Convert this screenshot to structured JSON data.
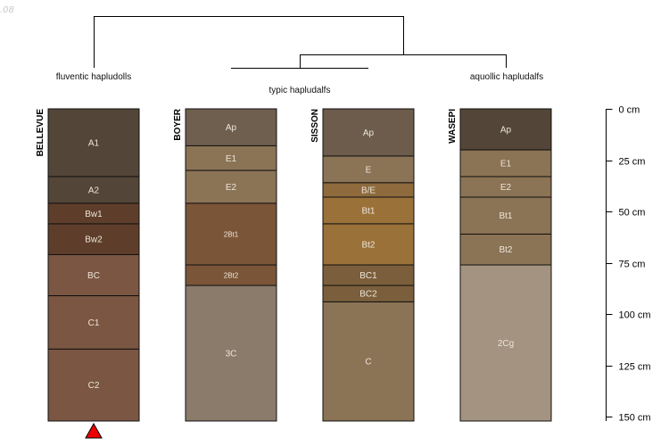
{
  "corner_text": ".08",
  "dendrogram": {
    "labels": [
      "fluventic hapludolls",
      "typic hapludalfs",
      "aquollic hapludalfs"
    ]
  },
  "profiles": [
    {
      "id": "BELLEVUE",
      "marker": "up-triangle",
      "marker_color": "#ee0000",
      "horizons": [
        {
          "name": "A1",
          "top": 0,
          "bottom": 33,
          "color": "#534538"
        },
        {
          "name": "A2",
          "top": 33,
          "bottom": 46,
          "color": "#534538"
        },
        {
          "name": "Bw1",
          "top": 46,
          "bottom": 56,
          "color": "#5e3e2b"
        },
        {
          "name": "Bw2",
          "top": 56,
          "bottom": 71,
          "color": "#5e3e2b"
        },
        {
          "name": "BC",
          "top": 71,
          "bottom": 91,
          "color": "#7b5642"
        },
        {
          "name": "C1",
          "top": 91,
          "bottom": 117,
          "color": "#7b5642"
        },
        {
          "name": "C2",
          "top": 117,
          "bottom": 152,
          "color": "#7b5642"
        }
      ]
    },
    {
      "id": "BOYER",
      "marker": "",
      "marker_color": "",
      "horizons": [
        {
          "name": "Ap",
          "top": 0,
          "bottom": 18,
          "color": "#6f5f4e"
        },
        {
          "name": "E1",
          "top": 18,
          "bottom": 30,
          "color": "#8b7355"
        },
        {
          "name": "E2",
          "top": 30,
          "bottom": 46,
          "color": "#8b7355"
        },
        {
          "name": "2Bt1",
          "top": 46,
          "bottom": 76,
          "color": "#7b5538"
        },
        {
          "name": "2Bt2",
          "top": 76,
          "bottom": 86,
          "color": "#7b5538"
        },
        {
          "name": "3C",
          "top": 86,
          "bottom": 152,
          "color": "#8a7b6a"
        }
      ]
    },
    {
      "id": "SISSON",
      "marker": "",
      "marker_color": "",
      "horizons": [
        {
          "name": "Ap",
          "top": 0,
          "bottom": 23,
          "color": "#6d5c4b"
        },
        {
          "name": "E",
          "top": 23,
          "bottom": 36,
          "color": "#8b7355"
        },
        {
          "name": "B/E",
          "top": 36,
          "bottom": 43,
          "color": "#8e6a3d"
        },
        {
          "name": "Bt1",
          "top": 43,
          "bottom": 56,
          "color": "#9a7138"
        },
        {
          "name": "Bt2",
          "top": 56,
          "bottom": 76,
          "color": "#9a7138"
        },
        {
          "name": "BC1",
          "top": 76,
          "bottom": 86,
          "color": "#7b5f3c"
        },
        {
          "name": "BC2",
          "top": 86,
          "bottom": 94,
          "color": "#7b5f3c"
        },
        {
          "name": "C",
          "top": 94,
          "bottom": 152,
          "color": "#8b7355"
        }
      ]
    },
    {
      "id": "WASEPI",
      "marker": "",
      "marker_color": "",
      "horizons": [
        {
          "name": "Ap",
          "top": 0,
          "bottom": 20,
          "color": "#534538"
        },
        {
          "name": "E1",
          "top": 20,
          "bottom": 33,
          "color": "#8b7355"
        },
        {
          "name": "E2",
          "top": 33,
          "bottom": 43,
          "color": "#8b7355"
        },
        {
          "name": "Bt1",
          "top": 43,
          "bottom": 61,
          "color": "#8b7355"
        },
        {
          "name": "Bt2",
          "top": 61,
          "bottom": 76,
          "color": "#8b7355"
        },
        {
          "name": "2Cg",
          "top": 76,
          "bottom": 152,
          "color": "#a39380"
        }
      ]
    }
  ],
  "depth_scale": {
    "unit": "cm",
    "ticks": [
      0,
      25,
      50,
      75,
      100,
      125,
      150
    ],
    "tick_labels": [
      "0 cm",
      "25 cm",
      "50 cm",
      "75 cm",
      "100 cm",
      "125 cm",
      "150 cm"
    ],
    "max": 152
  }
}
